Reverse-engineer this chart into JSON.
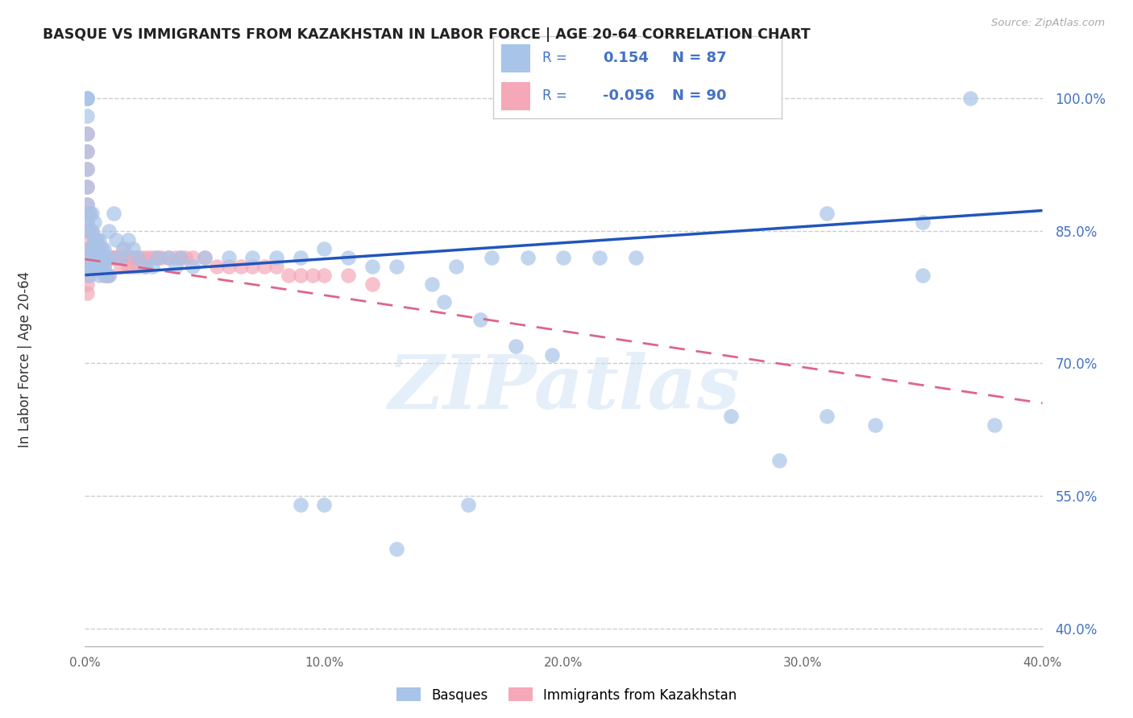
{
  "title": "BASQUE VS IMMIGRANTS FROM KAZAKHSTAN IN LABOR FORCE | AGE 20-64 CORRELATION CHART",
  "source": "Source: ZipAtlas.com",
  "ylabel": "In Labor Force | Age 20-64",
  "xlim": [
    0.0,
    0.4
  ],
  "ylim": [
    0.38,
    1.03
  ],
  "xticks": [
    0.0,
    0.1,
    0.2,
    0.3,
    0.4
  ],
  "xtick_labels": [
    "0.0%",
    "10.0%",
    "20.0%",
    "30.0%",
    "40.0%"
  ],
  "yticks": [
    0.4,
    0.55,
    0.7,
    0.85,
    1.0
  ],
  "ytick_labels": [
    "40.0%",
    "55.0%",
    "70.0%",
    "85.0%",
    "100.0%"
  ],
  "blue_R": "0.154",
  "blue_N": "87",
  "pink_R": "-0.056",
  "pink_N": "90",
  "blue_color": "#a8c4e8",
  "pink_color": "#f4a8b8",
  "trend_blue_color": "#2255bb",
  "trend_pink_color": "#dd6688",
  "blue_trend_y0": 0.8,
  "blue_trend_y1": 0.873,
  "pink_trend_y0": 0.818,
  "pink_trend_y1": 0.655,
  "blue_x": [
    0.001,
    0.001,
    0.001,
    0.001,
    0.001,
    0.001,
    0.001,
    0.001,
    0.001,
    0.001,
    0.002,
    0.002,
    0.002,
    0.002,
    0.002,
    0.002,
    0.003,
    0.003,
    0.003,
    0.003,
    0.003,
    0.004,
    0.004,
    0.004,
    0.004,
    0.005,
    0.005,
    0.005,
    0.006,
    0.006,
    0.006,
    0.007,
    0.007,
    0.008,
    0.008,
    0.009,
    0.009,
    0.01,
    0.01,
    0.01,
    0.012,
    0.013,
    0.015,
    0.016,
    0.018,
    0.02,
    0.022,
    0.025,
    0.028,
    0.03,
    0.035,
    0.038,
    0.04,
    0.045,
    0.05,
    0.06,
    0.07,
    0.08,
    0.09,
    0.1,
    0.11,
    0.12,
    0.13,
    0.145,
    0.155,
    0.17,
    0.185,
    0.2,
    0.215,
    0.23,
    0.15,
    0.165,
    0.18,
    0.195,
    0.27,
    0.31,
    0.33,
    0.35,
    0.37,
    0.38,
    0.31,
    0.35,
    0.29,
    0.16,
    0.13,
    0.1,
    0.09
  ],
  "blue_y": [
    1.0,
    1.0,
    1.0,
    0.98,
    0.96,
    0.94,
    0.92,
    0.9,
    0.88,
    0.86,
    0.87,
    0.85,
    0.83,
    0.82,
    0.81,
    0.8,
    0.87,
    0.85,
    0.83,
    0.82,
    0.81,
    0.86,
    0.84,
    0.82,
    0.81,
    0.84,
    0.82,
    0.81,
    0.84,
    0.82,
    0.8,
    0.83,
    0.81,
    0.83,
    0.81,
    0.82,
    0.8,
    0.85,
    0.82,
    0.8,
    0.87,
    0.84,
    0.82,
    0.83,
    0.84,
    0.83,
    0.82,
    0.81,
    0.81,
    0.82,
    0.82,
    0.81,
    0.82,
    0.81,
    0.82,
    0.82,
    0.82,
    0.82,
    0.82,
    0.83,
    0.82,
    0.81,
    0.81,
    0.79,
    0.81,
    0.82,
    0.82,
    0.82,
    0.82,
    0.82,
    0.77,
    0.75,
    0.72,
    0.71,
    0.64,
    0.64,
    0.63,
    0.8,
    1.0,
    0.63,
    0.87,
    0.86,
    0.59,
    0.54,
    0.49,
    0.54,
    0.54
  ],
  "pink_x": [
    0.001,
    0.001,
    0.001,
    0.001,
    0.001,
    0.001,
    0.001,
    0.001,
    0.001,
    0.001,
    0.001,
    0.001,
    0.001,
    0.001,
    0.001,
    0.002,
    0.002,
    0.002,
    0.002,
    0.002,
    0.003,
    0.003,
    0.003,
    0.003,
    0.004,
    0.004,
    0.004,
    0.005,
    0.005,
    0.005,
    0.006,
    0.006,
    0.007,
    0.007,
    0.008,
    0.008,
    0.009,
    0.009,
    0.01,
    0.01,
    0.011,
    0.012,
    0.013,
    0.014,
    0.015,
    0.016,
    0.017,
    0.018,
    0.019,
    0.02,
    0.022,
    0.024,
    0.026,
    0.028,
    0.03,
    0.032,
    0.035,
    0.038,
    0.04,
    0.042,
    0.045,
    0.05,
    0.055,
    0.06,
    0.065,
    0.07,
    0.075,
    0.08,
    0.085,
    0.09,
    0.095,
    0.1,
    0.11,
    0.12,
    0.02,
    0.025,
    0.015,
    0.018,
    0.022,
    0.005,
    0.008,
    0.012,
    0.016,
    0.02,
    0.003,
    0.004,
    0.006,
    0.007,
    0.009,
    0.011
  ],
  "pink_y": [
    0.96,
    0.94,
    0.92,
    0.9,
    0.88,
    0.87,
    0.86,
    0.85,
    0.84,
    0.83,
    0.82,
    0.81,
    0.8,
    0.79,
    0.78,
    0.87,
    0.85,
    0.83,
    0.82,
    0.81,
    0.85,
    0.83,
    0.82,
    0.81,
    0.84,
    0.82,
    0.81,
    0.84,
    0.82,
    0.81,
    0.83,
    0.81,
    0.83,
    0.81,
    0.82,
    0.8,
    0.82,
    0.8,
    0.82,
    0.8,
    0.82,
    0.82,
    0.82,
    0.82,
    0.82,
    0.82,
    0.82,
    0.82,
    0.82,
    0.82,
    0.82,
    0.82,
    0.82,
    0.82,
    0.82,
    0.82,
    0.82,
    0.82,
    0.82,
    0.82,
    0.82,
    0.82,
    0.81,
    0.81,
    0.81,
    0.81,
    0.81,
    0.81,
    0.8,
    0.8,
    0.8,
    0.8,
    0.8,
    0.79,
    0.81,
    0.81,
    0.81,
    0.81,
    0.81,
    0.83,
    0.81,
    0.82,
    0.83,
    0.82,
    0.82,
    0.82,
    0.82,
    0.82,
    0.82,
    0.82
  ],
  "watermark_text": "ZIPatlas",
  "background_color": "#ffffff",
  "grid_color": "#cccccc",
  "ytick_color": "#4472c4",
  "xtick_color": "#666666",
  "legend_box_color": "#cccccc",
  "all_text_color_legend": "#4472c4"
}
